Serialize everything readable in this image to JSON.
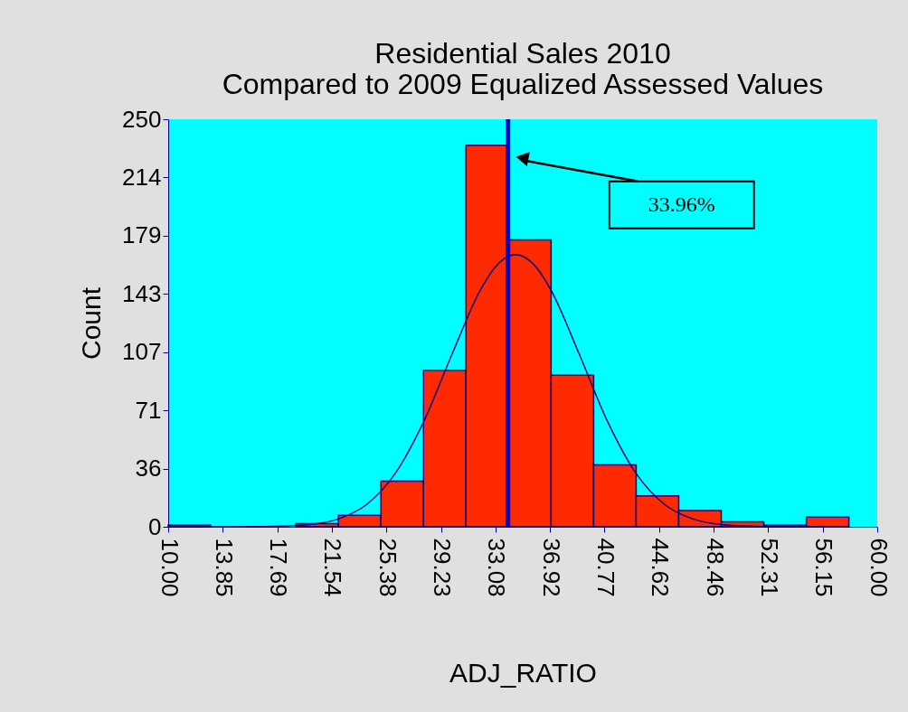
{
  "chart_data": {
    "type": "histogram",
    "title": "Residential Sales 2010",
    "subtitle": "Compared to 2009 Equalized Assessed Values",
    "xlabel": "ADJ_RATIO",
    "ylabel": "Count",
    "bins": [
      10,
      13,
      16,
      19,
      22,
      25,
      28,
      31,
      34,
      37,
      40,
      43,
      46,
      49,
      52,
      55,
      58
    ],
    "values": [
      1,
      0,
      0,
      2,
      7,
      28,
      96,
      234,
      176,
      93,
      38,
      19,
      10,
      3,
      1,
      6
    ],
    "color": "#ff2a00",
    "series": [
      {
        "type": "line",
        "color": "#000080",
        "x": [
          12,
          16,
          18,
          20,
          22,
          24,
          26,
          28,
          30,
          32,
          33,
          34.5,
          36,
          37,
          39,
          41,
          43,
          45,
          47,
          49,
          51,
          53,
          56
        ],
        "values": [
          0,
          0.1,
          0.4,
          1.4,
          4.8,
          13.7,
          32.6,
          64.2,
          105.6,
          145,
          158.7,
          167,
          158.7,
          145,
          105.6,
          64.2,
          32.6,
          13.7,
          4.8,
          1.4,
          0.4,
          0.1,
          0
        ]
      }
    ],
    "xlim": [
      10,
      60
    ],
    "ylim": [
      0,
      250
    ],
    "xticks": [
      {
        "value": 10,
        "label": "10.00"
      },
      13.85,
      17.69,
      21.54,
      25.38,
      29.23,
      33.08,
      36.92,
      40.77,
      44.62,
      48.46,
      52.31,
      56.15,
      {
        "value": 60,
        "label": "60.00"
      }
    ],
    "yticks": [
      0,
      {
        "value": 35.71,
        "label": "36"
      },
      {
        "value": 71.43,
        "label": "71"
      },
      {
        "value": 107.14,
        "label": "107"
      },
      {
        "value": 142.86,
        "label": "143"
      },
      {
        "value": 178.57,
        "label": "179"
      },
      {
        "value": 214.29,
        "label": "214"
      },
      250
    ],
    "ref_lines": [
      {
        "axis": "x",
        "value": 33.96,
        "color": "#0000cc"
      }
    ],
    "annotations": [
      "33.96%"
    ],
    "grid": false
  }
}
